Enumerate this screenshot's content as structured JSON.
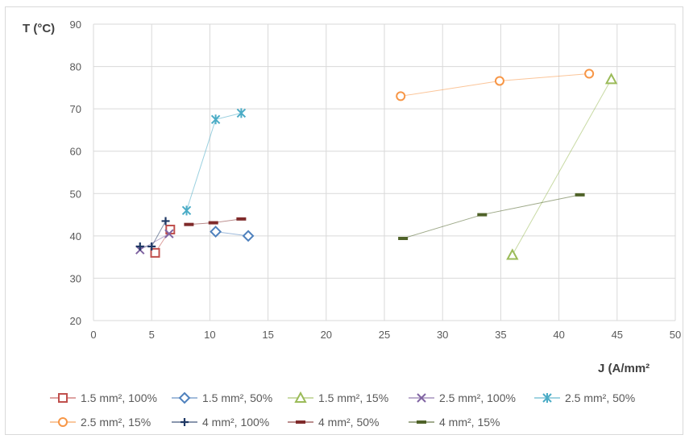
{
  "chart_data": {
    "type": "scatter",
    "title": "",
    "xlabel": "J (A/mm²",
    "ylabel": "T (°C)",
    "xlim": [
      0,
      50
    ],
    "ylim": [
      20,
      90
    ],
    "xticks": [
      0,
      5,
      10,
      15,
      20,
      25,
      30,
      35,
      40,
      45,
      50
    ],
    "yticks": [
      20,
      30,
      40,
      50,
      60,
      70,
      80,
      90
    ],
    "grid": true,
    "legend_position": "bottom",
    "series": [
      {
        "name": "1.5 mm², 100%",
        "color": "#c0504d",
        "marker": "square",
        "points": [
          [
            5.3,
            36.0
          ],
          [
            6.6,
            41.5
          ]
        ]
      },
      {
        "name": "1.5 mm², 50%",
        "color": "#4f81bd",
        "marker": "diamond",
        "points": [
          [
            10.5,
            41.0
          ],
          [
            13.3,
            40.0
          ]
        ]
      },
      {
        "name": "1.5 mm², 15%",
        "color": "#9bbb59",
        "marker": "triangle",
        "points": [
          [
            36.0,
            35.5
          ],
          [
            44.5,
            77.0
          ]
        ]
      },
      {
        "name": "2.5 mm², 100%",
        "color": "#8064a2",
        "marker": "x",
        "points": [
          [
            4.0,
            36.7
          ],
          [
            6.5,
            40.5
          ]
        ]
      },
      {
        "name": "2.5 mm², 50%",
        "color": "#4bacc6",
        "marker": "star",
        "points": [
          [
            8.0,
            46.0
          ],
          [
            10.5,
            67.5
          ],
          [
            12.7,
            69.0
          ]
        ]
      },
      {
        "name": "2.5 mm², 15%",
        "color": "#f79646",
        "marker": "circle",
        "points": [
          [
            26.4,
            73.0
          ],
          [
            34.9,
            76.6
          ],
          [
            42.6,
            78.3
          ]
        ]
      },
      {
        "name": "4 mm², 100%",
        "color": "#1f3864",
        "marker": "plus",
        "points": [
          [
            4.0,
            37.5
          ],
          [
            5.0,
            37.5
          ],
          [
            6.2,
            43.5
          ]
        ]
      },
      {
        "name": "4 mm², 50%",
        "color": "#7f2a2a",
        "marker": "dash",
        "points": [
          [
            8.2,
            42.7
          ],
          [
            10.3,
            43.1
          ],
          [
            12.7,
            44.0
          ]
        ]
      },
      {
        "name": "4 mm², 15%",
        "color": "#4f6228",
        "marker": "dash",
        "points": [
          [
            26.6,
            39.4
          ],
          [
            33.4,
            45.0
          ],
          [
            41.8,
            49.7
          ]
        ]
      }
    ]
  }
}
